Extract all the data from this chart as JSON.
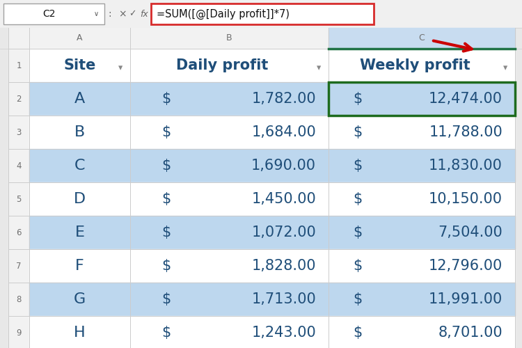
{
  "formula_bar_text": "=SUM([@[Daily profit]]*7)",
  "cell_ref": "C2",
  "headers": [
    "Site",
    "Daily profit",
    "Weekly profit"
  ],
  "sites": [
    "A",
    "B",
    "C",
    "D",
    "E",
    "F",
    "G",
    "H"
  ],
  "daily_profit": [
    "1,782.00",
    "1,684.00",
    "1,690.00",
    "1,450.00",
    "1,072.00",
    "1,828.00",
    "1,713.00",
    "1,243.00"
  ],
  "weekly_profit": [
    "12,474.00",
    "11,788.00",
    "11,830.00",
    "10,150.00",
    "7,504.00",
    "12,796.00",
    "11,991.00",
    "8,701.00"
  ],
  "bg_blue": "#BDD7EE",
  "bg_white": "#FFFFFF",
  "bg_outer": "#E8E8E8",
  "text_dark_blue": "#1F4E79",
  "text_gray": "#707070",
  "col_header_bg": "#F2F2F2",
  "col_header_sel_bg": "#C8DCF0",
  "formula_border": "#D72B2B",
  "arrow_color": "#CC0000",
  "grid_color": "#CCCCCC",
  "selected_cell_border": "#1E6B1E",
  "col_header_sel_bottom": "#217346"
}
